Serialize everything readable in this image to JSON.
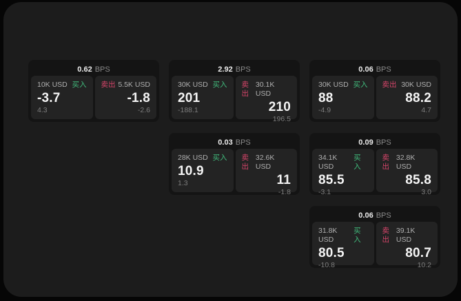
{
  "page": {
    "background_color": "#060606",
    "panel_color": "#1c1c1c",
    "card_color": "#141414",
    "pane_color": "#232323"
  },
  "colors": {
    "buy_green": "#41bd7d",
    "sell_red": "#d6456a",
    "value_white": "#f5f5f5",
    "label_gray": "#b0b0b0",
    "dim_gray": "#7e7e7e"
  },
  "labels": {
    "buy": "买入",
    "sell": "卖出",
    "bps": "BPS"
  },
  "cards": [
    {
      "bps": "0.62",
      "buy_amount": "10K USD",
      "buy_price": "-3.7",
      "buy_change": "4.3",
      "sell_amount": "5.5K USD",
      "sell_price": "-1.8",
      "sell_change": "-2.6"
    },
    {
      "bps": "2.92",
      "buy_amount": "30K USD",
      "buy_price": "201",
      "buy_change": "-188.1",
      "sell_amount": "30.1K USD",
      "sell_price": "210",
      "sell_change": "196.5"
    },
    {
      "bps": "0.06",
      "buy_amount": "30K USD",
      "buy_price": "88",
      "buy_change": "-4.9",
      "sell_amount": "30K USD",
      "sell_price": "88.2",
      "sell_change": "4.7"
    },
    {
      "bps": "0.03",
      "buy_amount": "28K USD",
      "buy_price": "10.9",
      "buy_change": "1.3",
      "sell_amount": "32.6K USD",
      "sell_price": "11",
      "sell_change": "-1.8"
    },
    {
      "bps": "0.09",
      "buy_amount": "34.1K USD",
      "buy_price": "85.5",
      "buy_change": "-3.1",
      "sell_amount": "32.8K USD",
      "sell_price": "85.8",
      "sell_change": "3.0"
    },
    {
      "bps": "0.06",
      "buy_amount": "31.8K USD",
      "buy_price": "80.5",
      "buy_change": "-10.8",
      "sell_amount": "39.1K USD",
      "sell_price": "80.7",
      "sell_change": "10.2"
    }
  ]
}
